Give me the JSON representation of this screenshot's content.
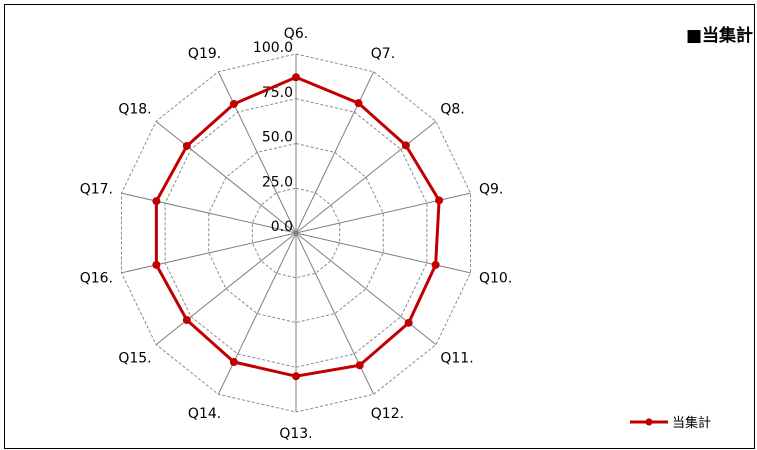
{
  "chart_data": {
    "type": "radar",
    "title": "■当集計",
    "categories": [
      "Q6.",
      "Q7.",
      "Q8.",
      "Q9.",
      "Q10.",
      "Q11.",
      "Q12.",
      "Q13.",
      "Q14.",
      "Q15.",
      "Q16.",
      "Q17.",
      "Q18.",
      "Q19."
    ],
    "series": [
      {
        "name": "当集計",
        "values": [
          87.0,
          80.5,
          78.5,
          82.0,
          80.0,
          80.5,
          82.0,
          80.0,
          80.0,
          78.0,
          80.0,
          80.0,
          78.0,
          80.0
        ]
      }
    ],
    "rlim": [
      0,
      100
    ],
    "ticks": [
      0,
      25,
      50,
      75,
      100
    ],
    "tick_labels": [
      "0.0",
      "25.0",
      "50.0",
      "75.0",
      "100.0"
    ],
    "grid": true,
    "legend_position": "bottom-right",
    "series_color": "#c00000"
  }
}
